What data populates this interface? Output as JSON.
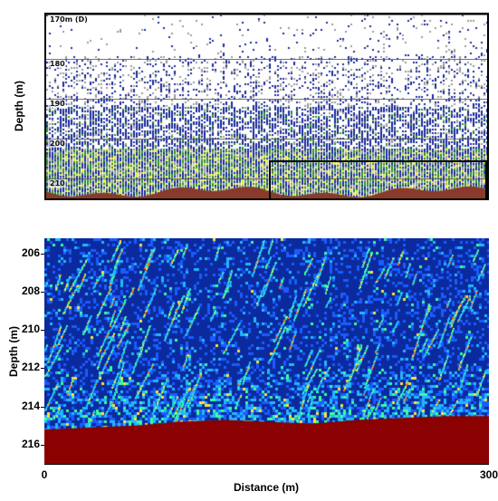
{
  "chart_data": [
    {
      "type": "heatmap",
      "panel": "top",
      "title": "",
      "xlabel": "",
      "ylabel": "Depth (m)",
      "depth_markers": [
        "170m (D)",
        "180",
        "190",
        "200",
        "210"
      ],
      "depth_marker_values": [
        170,
        180,
        190,
        200,
        210
      ],
      "ylim": [
        169,
        215
      ],
      "xlim": [
        0,
        1000
      ],
      "seabed_depth_range": [
        212,
        214
      ],
      "highlight_box": {
        "x_range": [
          505,
          1000
        ],
        "depth_range": [
          205.5,
          215
        ]
      },
      "colors": [
        "#ffffff",
        "#9a9a9a",
        "#1a2a9c",
        "#2d8c2d",
        "#e6e040",
        "#8a3a2a"
      ]
    },
    {
      "type": "heatmap",
      "panel": "bottom",
      "title": "",
      "xlabel": "Distance (m)",
      "ylabel": "Depth (m)",
      "xlim": [
        0,
        300
      ],
      "ylim": [
        205.2,
        217
      ],
      "x_ticks": [
        "0",
        "300"
      ],
      "x_tick_values": [
        0,
        300
      ],
      "y_ticks": [
        "206",
        "208",
        "210",
        "212",
        "214",
        "216"
      ],
      "y_tick_values": [
        206,
        208,
        210,
        212,
        214,
        216
      ],
      "seabed_profile": {
        "distance": [
          0,
          30,
          60,
          90,
          120,
          150,
          180,
          210,
          240,
          270,
          300
        ],
        "depth": [
          215.2,
          215.1,
          215.0,
          214.8,
          214.7,
          214.8,
          214.9,
          214.7,
          214.6,
          214.5,
          214.5
        ]
      },
      "background_color": "#123eb8",
      "seabed_color": "#8b0000",
      "colormap": [
        "#0b2a9e",
        "#1a5cff",
        "#22b8ff",
        "#3cff9a",
        "#ffe43a",
        "#ff6a1a",
        "#b00000"
      ]
    }
  ]
}
